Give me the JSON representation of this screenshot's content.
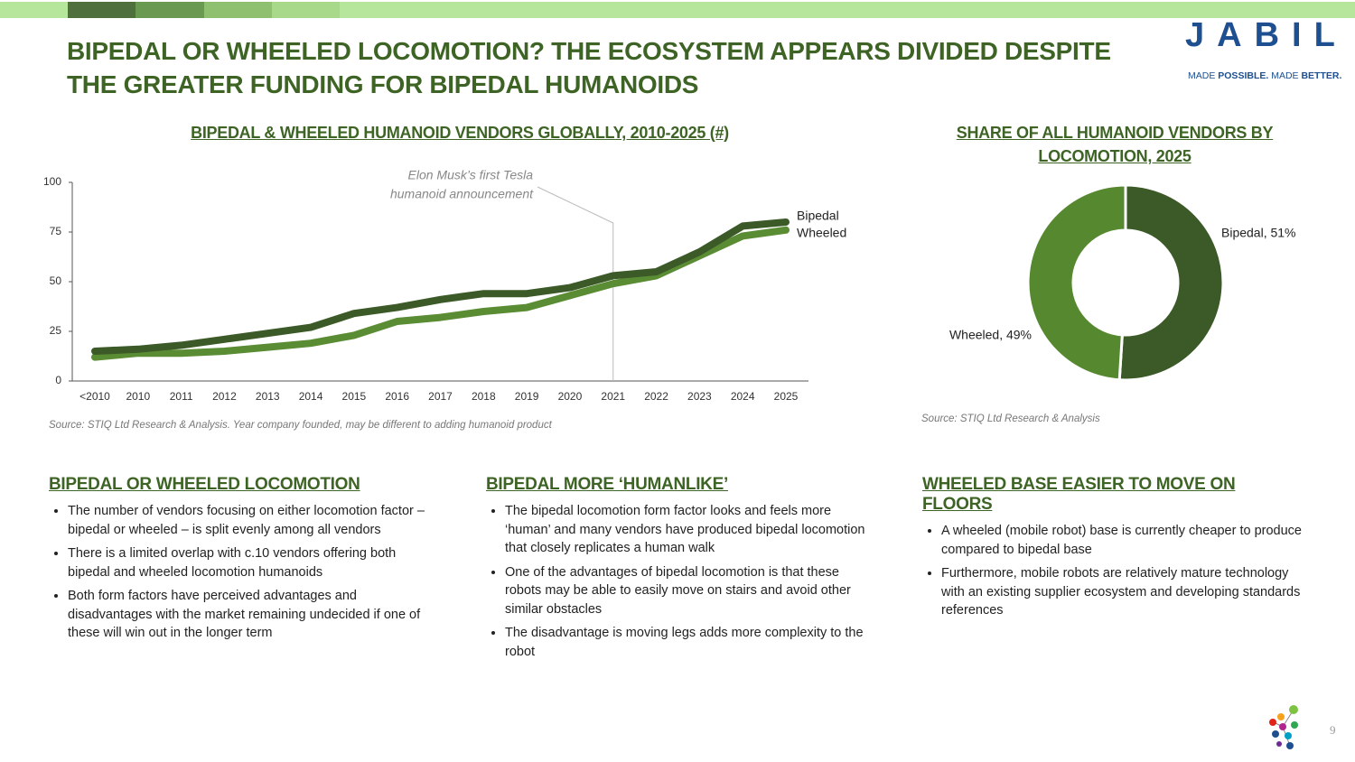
{
  "header": {
    "title": "BIPEDAL OR WHEELED LOCOMOTION? THE ECOSYSTEM APPEARS DIVIDED DESPITE THE GREATER FUNDING FOR BIPEDAL HUMANOIDS",
    "logo": "JABIL",
    "tagline": [
      "MADE",
      "POSSIBLE.",
      "MADE",
      "BETTER."
    ]
  },
  "chart_data": [
    {
      "type": "line",
      "title": "BIPEDAL & WHEELED HUMANOID VENDORS GLOBALLY, 2010-2025 (#)",
      "categories": [
        "<2010",
        "2010",
        "2011",
        "2012",
        "2013",
        "2014",
        "2015",
        "2016",
        "2017",
        "2018",
        "2019",
        "2020",
        "2021",
        "2022",
        "2023",
        "2024",
        "2025"
      ],
      "series": [
        {
          "name": "Bipedal",
          "color": "#3b5a27",
          "values": [
            15,
            16,
            18,
            21,
            24,
            27,
            34,
            37,
            41,
            44,
            44,
            47,
            53,
            55,
            65,
            78,
            80
          ]
        },
        {
          "name": "Wheeled",
          "color": "#5a8c34",
          "values": [
            12,
            14,
            14,
            15,
            17,
            19,
            23,
            30,
            32,
            35,
            37,
            43,
            49,
            53,
            63,
            73,
            76
          ]
        }
      ],
      "ylim": [
        0,
        100
      ],
      "yticks": [
        0,
        25,
        50,
        75,
        100
      ],
      "annotation": {
        "lines": [
          "Elon Musk’s first Tesla",
          "humanoid announcement"
        ],
        "at": "2021"
      },
      "source": "Source: STIQ Ltd Research & Analysis. Year company founded, may be different to adding humanoid product"
    },
    {
      "type": "donut",
      "title": "SHARE OF ALL HUMANOID VENDORS BY LOCOMOTION, 2025",
      "values": [
        51,
        49
      ],
      "value_labels": [
        "Bipedal, 51%",
        "Wheeled, 49%"
      ],
      "colors": [
        "#3b5a27",
        "#56892f"
      ],
      "source": "Source: STIQ Ltd Research & Analysis"
    }
  ],
  "sections": [
    {
      "title": "BIPEDAL OR WHEELED LOCOMOTION",
      "bullets": [
        "The number of vendors focusing on either locomotion factor – bipedal or wheeled – is split evenly among all vendors",
        "There is a limited overlap with c.10 vendors offering both bipedal and wheeled locomotion humanoids",
        "Both form factors have perceived advantages and disadvantages with the market remaining undecided if one of these will win out in the longer term"
      ]
    },
    {
      "title": "BIPEDAL MORE ‘HUMANLIKE’",
      "bullets": [
        "The bipedal locomotion form factor looks and feels more ‘human’ and many vendors have produced bipedal locomotion that closely replicates a human walk",
        "One of the advantages of bipedal locomotion is that these robots may be able to easily move on stairs and avoid other similar obstacles",
        "The disadvantage is moving legs adds more complexity to the robot"
      ]
    },
    {
      "title": "WHEELED BASE EASIER TO MOVE ON FLOORS",
      "bullets": [
        "A wheeled (mobile robot) base is currently cheaper to produce compared to bipedal base",
        "Furthermore, mobile robots are relatively mature technology with an existing supplier ecosystem and developing standards references"
      ]
    }
  ],
  "page_number": "9"
}
